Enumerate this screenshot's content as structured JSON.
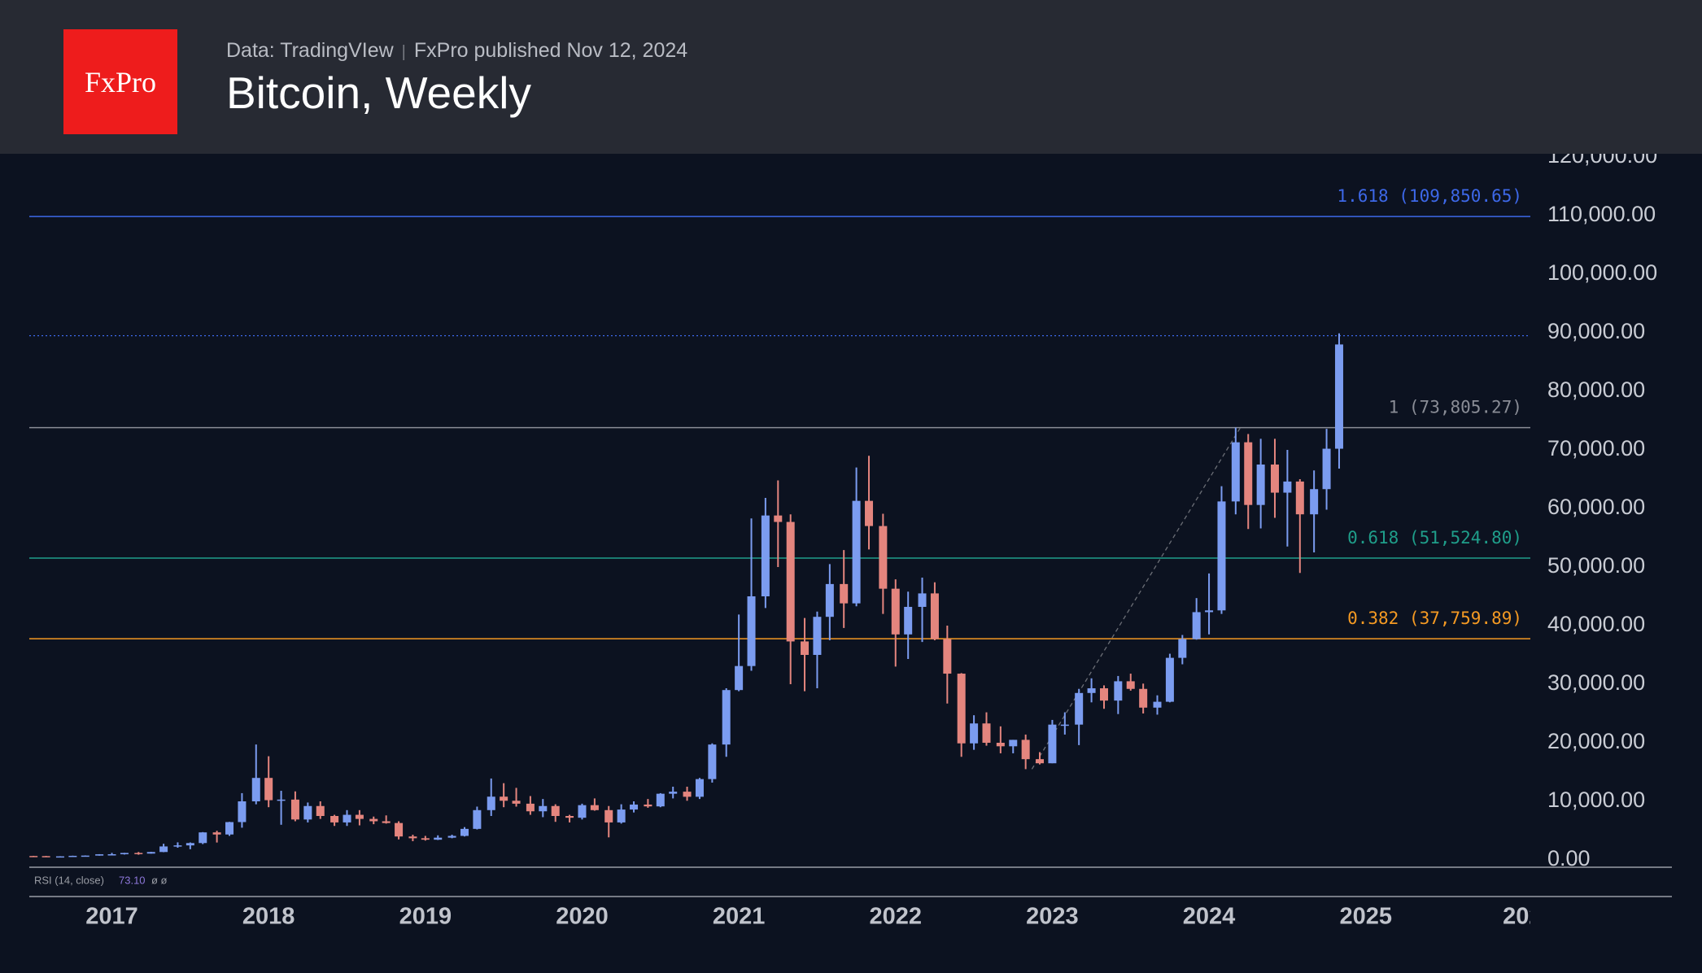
{
  "header": {
    "logo": "FxPro",
    "source": "Data: TradingVIew",
    "published": "FxPro published Nov 12, 2024",
    "title": "Bitcoin, Weekly"
  },
  "chart_data": {
    "type": "candlestick",
    "up_color": "#7b9cf0",
    "down_color": "#e4857e",
    "xlim": [
      2016.473,
      2026.05
    ],
    "xticks": [
      2017,
      2018,
      2019,
      2020,
      2021,
      2022,
      2023,
      2024,
      2025,
      {
        "value": 2026,
        "label": "202"
      }
    ],
    "ylim": [
      0,
      120000
    ],
    "yticks": [
      {
        "value": 0,
        "label": "0.00"
      },
      {
        "value": 10000,
        "label": "10,000.00"
      },
      {
        "value": 20000,
        "label": "20,000.00"
      },
      {
        "value": 30000,
        "label": "30,000.00"
      },
      {
        "value": 40000,
        "label": "40,000.00"
      },
      {
        "value": 50000,
        "label": "50,000.00"
      },
      {
        "value": 60000,
        "label": "60,000.00"
      },
      {
        "value": 70000,
        "label": "70,000.00"
      },
      {
        "value": 80000,
        "label": "80,000.00"
      },
      {
        "value": 90000,
        "label": "90,000.00"
      },
      {
        "value": 100000,
        "label": "100,000.00"
      },
      {
        "value": 110000,
        "label": "110,000.00"
      },
      {
        "value": 120000,
        "label": "120,000.00"
      }
    ],
    "fib_levels": [
      {
        "value": 109850.65,
        "label": "1.618 (109,850.65)",
        "color": "#3d68e8"
      },
      {
        "value": 73805.27,
        "label": "1 (73,805.27)",
        "color": "#8a8d96"
      },
      {
        "value": 51524.8,
        "label": "0.618 (51,524.80)",
        "color": "#1f9e8a"
      },
      {
        "value": 37759.89,
        "label": "0.382 (37,759.89)",
        "color": "#f59a23"
      }
    ],
    "price_line": 89500,
    "trend_line": {
      "x": [
        2022.87,
        2024.2
      ],
      "y": [
        15500,
        73805.27
      ]
    },
    "indicator": {
      "name": "RSI (14, close)",
      "value": "73.10",
      "extra": "ø ø"
    },
    "x": [
      2016.5,
      2016.58,
      2016.67,
      2016.75,
      2016.83,
      2016.92,
      2017.0,
      2017.08,
      2017.17,
      2017.25,
      2017.33,
      2017.42,
      2017.5,
      2017.58,
      2017.67,
      2017.75,
      2017.83,
      2017.92,
      2018.0,
      2018.08,
      2018.17,
      2018.25,
      2018.33,
      2018.42,
      2018.5,
      2018.58,
      2018.67,
      2018.75,
      2018.83,
      2018.92,
      2019.0,
      2019.08,
      2019.17,
      2019.25,
      2019.33,
      2019.42,
      2019.5,
      2019.58,
      2019.67,
      2019.75,
      2019.83,
      2019.92,
      2020.0,
      2020.08,
      2020.17,
      2020.25,
      2020.33,
      2020.42,
      2020.5,
      2020.58,
      2020.67,
      2020.75,
      2020.83,
      2020.92,
      2021.0,
      2021.08,
      2021.17,
      2021.25,
      2021.33,
      2021.42,
      2021.5,
      2021.58,
      2021.67,
      2021.75,
      2021.83,
      2021.92,
      2022.0,
      2022.08,
      2022.17,
      2022.25,
      2022.33,
      2022.42,
      2022.5,
      2022.58,
      2022.67,
      2022.75,
      2022.83,
      2022.92,
      2023.0,
      2023.08,
      2023.17,
      2023.25,
      2023.33,
      2023.42,
      2023.5,
      2023.58,
      2023.67,
      2023.75,
      2023.83,
      2023.92,
      2024.0,
      2024.08,
      2024.17,
      2024.25,
      2024.33,
      2024.42,
      2024.5,
      2024.58,
      2024.67,
      2024.75,
      2024.83
    ],
    "open": [
      670,
      650,
      570,
      610,
      700,
      740,
      960,
      970,
      1190,
      1080,
      1350,
      2300,
      2480,
      2880,
      4700,
      4340,
      6460,
      10000,
      14000,
      10200,
      10300,
      6900,
      9200,
      7500,
      6400,
      7700,
      7000,
      6600,
      6300,
      4000,
      3700,
      3450,
      3800,
      4100,
      5300,
      8500,
      10800,
      10100,
      9600,
      8300,
      9200,
      7500,
      7200,
      9350,
      8500,
      6400,
      8600,
      9450,
      9140,
      11300,
      11650,
      10780,
      13800,
      19700,
      29000,
      33100,
      45000,
      58800,
      57700,
      37300,
      35000,
      41500,
      47100,
      43800,
      61300,
      57000,
      46300,
      38500,
      43200,
      45500,
      37700,
      31800,
      19900,
      23300,
      20000,
      19400,
      20500,
      17200,
      16500,
      23100,
      23100,
      28500,
      29300,
      27200,
      30500,
      29200,
      26000,
      27000,
      34500,
      37700,
      42300,
      42600,
      61200,
      71300,
      60600,
      67500,
      62700,
      64600,
      59000,
      63300,
      70200
    ],
    "high": [
      700,
      680,
      630,
      720,
      760,
      980,
      1200,
      1210,
      1350,
      1380,
      2760,
      3000,
      2980,
      4750,
      4980,
      6500,
      11400,
      19700,
      17700,
      11800,
      11700,
      9800,
      10000,
      7700,
      8500,
      8500,
      7400,
      7600,
      6600,
      4300,
      4100,
      4200,
      4300,
      5600,
      9100,
      13900,
      13100,
      12300,
      10900,
      10400,
      9500,
      7700,
      9600,
      10500,
      9200,
      9500,
      10000,
      10400,
      11400,
      12500,
      12500,
      14000,
      19900,
      29300,
      41900,
      58300,
      61800,
      64800,
      59000,
      41300,
      42400,
      50500,
      52900,
      67000,
      69000,
      59100,
      47900,
      45800,
      48200,
      47400,
      40000,
      31900,
      24700,
      25200,
      22800,
      20500,
      21400,
      18400,
      23900,
      25200,
      29200,
      31000,
      29800,
      31400,
      31800,
      30100,
      28100,
      35200,
      38400,
      44700,
      48900,
      63800,
      73800,
      72700,
      71900,
      71900,
      70000,
      65000,
      66500,
      73600,
      89900
    ],
    "low": [
      620,
      540,
      560,
      600,
      690,
      730,
      890,
      920,
      890,
      1070,
      1320,
      2080,
      1830,
      2700,
      2970,
      4100,
      5500,
      9500,
      9000,
      6000,
      6600,
      6400,
      7000,
      5800,
      5800,
      5900,
      6100,
      6200,
      3500,
      3200,
      3300,
      3400,
      3700,
      4000,
      5200,
      7500,
      9000,
      9100,
      7700,
      7300,
      6500,
      6400,
      6900,
      8400,
      3850,
      6200,
      8100,
      8900,
      9000,
      10500,
      10100,
      10400,
      13200,
      17600,
      28800,
      32300,
      43000,
      50000,
      30000,
      28800,
      29300,
      37500,
      39600,
      43300,
      53000,
      42000,
      33000,
      34300,
      37200,
      37500,
      26700,
      17600,
      18800,
      19500,
      18200,
      18200,
      15500,
      16300,
      16500,
      21400,
      19600,
      26900,
      25800,
      24900,
      28900,
      25000,
      24800,
      26900,
      33400,
      37600,
      38500,
      42000,
      59000,
      56500,
      56600,
      58400,
      53500,
      49000,
      52500,
      59800,
      66800
    ],
    "close": [
      650,
      570,
      610,
      700,
      740,
      960,
      970,
      1190,
      1080,
      1350,
      2300,
      2480,
      2880,
      4700,
      4340,
      6460,
      10000,
      14000,
      10200,
      10300,
      6900,
      9200,
      7500,
      6400,
      7700,
      7000,
      6600,
      6300,
      4000,
      3700,
      3450,
      3800,
      4100,
      5300,
      8500,
      10800,
      10100,
      9600,
      8300,
      9200,
      7500,
      7200,
      9350,
      8500,
      6400,
      8600,
      9450,
      9140,
      11300,
      11650,
      10780,
      13800,
      19700,
      29000,
      33100,
      45000,
      58800,
      57700,
      37300,
      35000,
      41500,
      47100,
      43800,
      61300,
      57000,
      46300,
      38500,
      43200,
      45500,
      37700,
      31800,
      19900,
      23300,
      20000,
      19400,
      20500,
      17200,
      16500,
      23100,
      23100,
      28500,
      29300,
      27200,
      30500,
      29200,
      26000,
      27000,
      34500,
      37700,
      42300,
      42600,
      61200,
      71300,
      60600,
      67500,
      62700,
      64600,
      59000,
      63300,
      70200,
      88000
    ]
  }
}
